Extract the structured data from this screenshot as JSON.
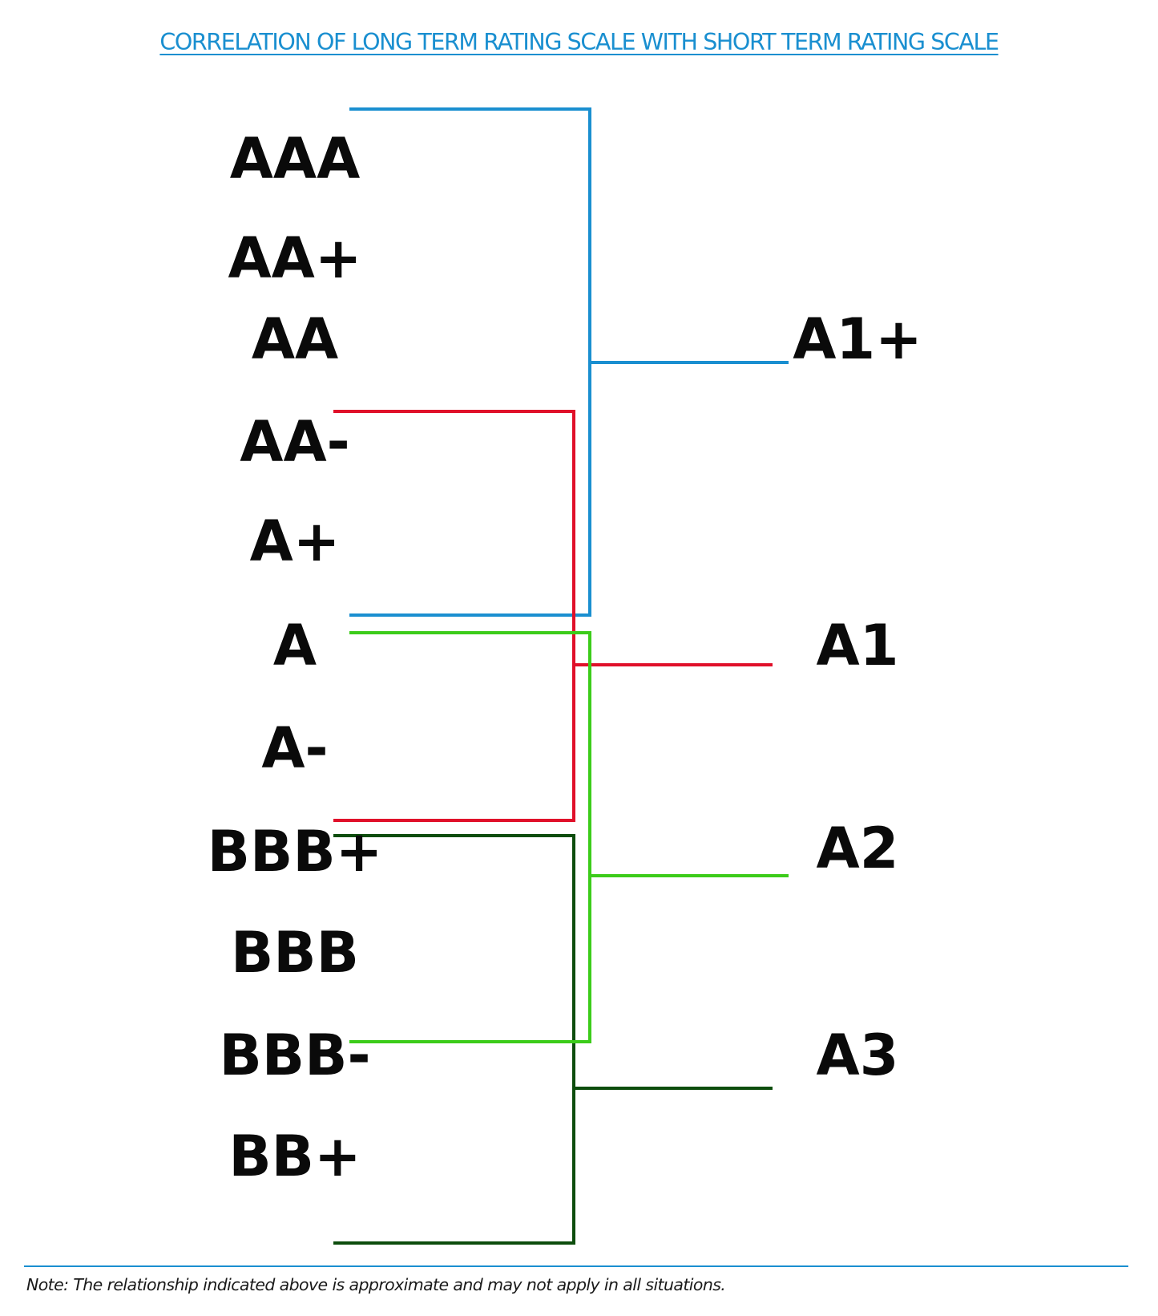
{
  "title": "CORRELATION OF LONG TERM RATING SCALE WITH SHORT TERM RATING SCALE",
  "long_term_ratings": [
    "AAA",
    "AA+",
    "AA",
    "AA-",
    "A+",
    "A",
    "A-",
    "BBB+",
    "BBB",
    "BBB-",
    "BB+"
  ],
  "short_term_ratings": [
    "A1+",
    "A1",
    "A2",
    "A3"
  ],
  "mappings": [
    {
      "short_term": "A1+",
      "from": "AAA",
      "to": "A",
      "color": "#1a8fd0"
    },
    {
      "short_term": "A1",
      "from": "AA-",
      "to": "A-",
      "color": "#e0102a"
    },
    {
      "short_term": "A2",
      "from": "A",
      "to": "BBB-",
      "color": "#3ccc1a"
    },
    {
      "short_term": "A3",
      "from": "BBB+",
      "to": "BB+",
      "color": "#0d4d0d"
    }
  ],
  "colors": {
    "title": "#1a8fd0",
    "text": "#0a0a0a",
    "rule": "#1a8fd0"
  },
  "note": "Note: The relationship indicated above is approximate and may not apply in all situations."
}
